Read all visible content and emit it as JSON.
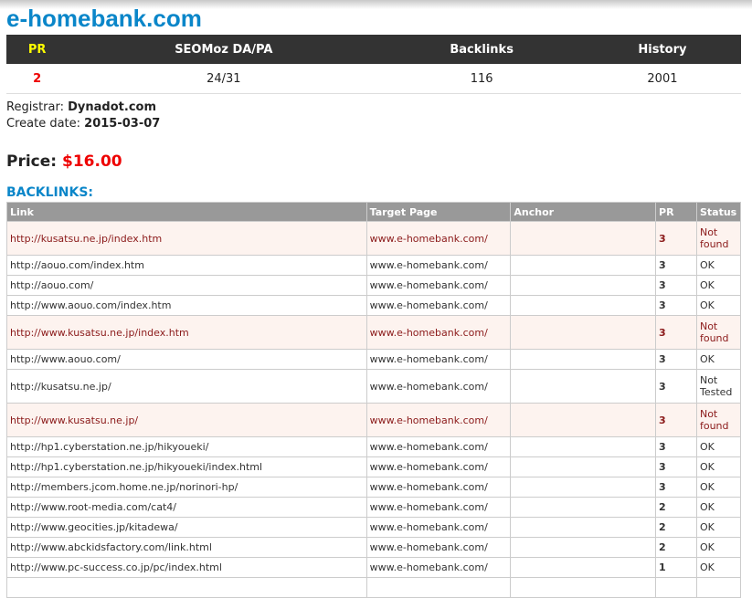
{
  "domain": "e-homebank.com",
  "stats": {
    "headers": [
      "PR",
      "SEOMoz DA/PA",
      "Backlinks",
      "History"
    ],
    "values": [
      "2",
      "24/31",
      "116",
      "2001"
    ]
  },
  "registrar_label": "Registrar:",
  "registrar": "Dynadot.com",
  "create_label": "Create date:",
  "create_date": "2015-03-07",
  "price_label": "Price:",
  "price": "$16.00",
  "backlinks_title": "BACKLINKS:",
  "table": {
    "headers": [
      "Link",
      "Target Page",
      "Anchor",
      "PR",
      "Status"
    ],
    "rows": [
      {
        "link": "http://kusatsu.ne.jp/index.htm",
        "target": "www.e-homebank.com/",
        "anchor": "",
        "pr": "3",
        "status": "Not found",
        "bad": true
      },
      {
        "link": "http://aouo.com/index.htm",
        "target": "www.e-homebank.com/",
        "anchor": "",
        "pr": "3",
        "status": "OK"
      },
      {
        "link": "http://aouo.com/",
        "target": "www.e-homebank.com/",
        "anchor": "",
        "pr": "3",
        "status": "OK"
      },
      {
        "link": "http://www.aouo.com/index.htm",
        "target": "www.e-homebank.com/",
        "anchor": "",
        "pr": "3",
        "status": "OK"
      },
      {
        "link": "http://www.kusatsu.ne.jp/index.htm",
        "target": "www.e-homebank.com/",
        "anchor": "",
        "pr": "3",
        "status": "Not found",
        "bad": true
      },
      {
        "link": "http://www.aouo.com/",
        "target": "www.e-homebank.com/",
        "anchor": "",
        "pr": "3",
        "status": "OK"
      },
      {
        "link": "http://kusatsu.ne.jp/",
        "target": "www.e-homebank.com/",
        "anchor": "",
        "pr": "3",
        "status": "Not Tested",
        "tall": true
      },
      {
        "link": "http://www.kusatsu.ne.jp/",
        "target": "www.e-homebank.com/",
        "anchor": "",
        "pr": "3",
        "status": "Not found",
        "bad": true
      },
      {
        "link": "http://hp1.cyberstation.ne.jp/hikyoueki/",
        "target": "www.e-homebank.com/",
        "anchor": "",
        "pr": "3",
        "status": "OK"
      },
      {
        "link": "http://hp1.cyberstation.ne.jp/hikyoueki/index.html",
        "target": "www.e-homebank.com/",
        "anchor": "",
        "pr": "3",
        "status": "OK"
      },
      {
        "link": "http://members.jcom.home.ne.jp/norinori-hp/",
        "target": "www.e-homebank.com/",
        "anchor": "",
        "pr": "3",
        "status": "OK"
      },
      {
        "link": "http://www.root-media.com/cat4/",
        "target": "www.e-homebank.com/",
        "anchor": "",
        "pr": "2",
        "status": "OK"
      },
      {
        "link": "http://www.geocities.jp/kitadewa/",
        "target": "www.e-homebank.com/",
        "anchor": "",
        "pr": "2",
        "status": "OK"
      },
      {
        "link": "http://www.abckidsfactory.com/link.html",
        "target": "www.e-homebank.com/",
        "anchor": "",
        "pr": "2",
        "status": "OK"
      },
      {
        "link": "http://www.pc-success.co.jp/pc/index.html",
        "target": "www.e-homebank.com/",
        "anchor": "",
        "pr": "1",
        "status": "OK"
      },
      {
        "link": "",
        "target": "",
        "anchor": "",
        "pr": "",
        "status": ""
      }
    ]
  }
}
